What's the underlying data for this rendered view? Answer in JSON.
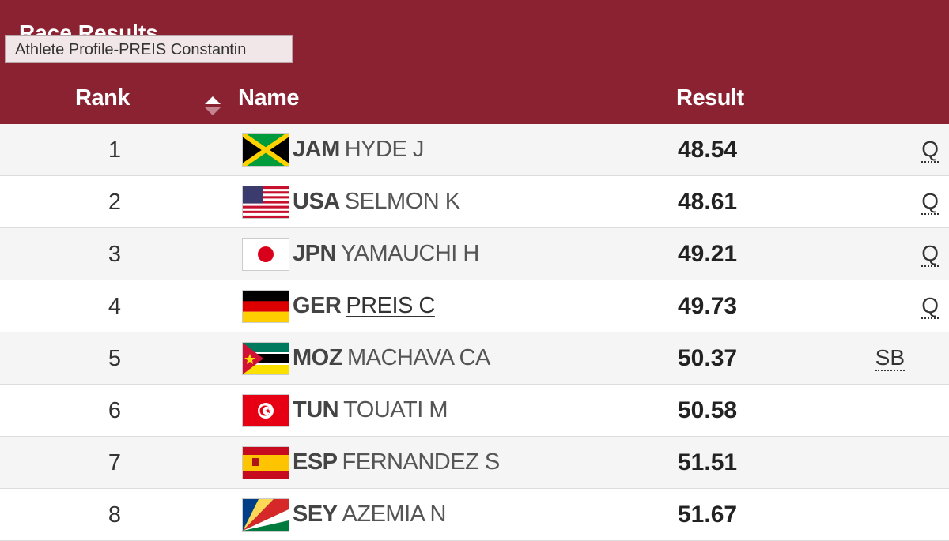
{
  "header": {
    "title": "Race Results",
    "tooltip": "Athlete Profile-PREIS Constantin",
    "columns": {
      "rank": "Rank",
      "name": "Name",
      "result": "Result"
    }
  },
  "table": {
    "rows": [
      {
        "rank": "1",
        "country": "JAM",
        "name": "HYDE J",
        "result": "48.54",
        "note": "Q"
      },
      {
        "rank": "2",
        "country": "USA",
        "name": "SELMON K",
        "result": "48.61",
        "note": "Q"
      },
      {
        "rank": "3",
        "country": "JPN",
        "name": "YAMAUCHI H",
        "result": "49.21",
        "note": "Q"
      },
      {
        "rank": "4",
        "country": "GER",
        "name": "PREIS C",
        "result": "49.73",
        "note": "Q"
      },
      {
        "rank": "5",
        "country": "MOZ",
        "name": "MACHAVA CA",
        "result": "50.37",
        "note": "SB"
      },
      {
        "rank": "6",
        "country": "TUN",
        "name": "TOUATI M",
        "result": "50.58"
      },
      {
        "rank": "7",
        "country": "ESP",
        "name": "FERNANDEZ S",
        "result": "51.51"
      },
      {
        "rank": "8",
        "country": "SEY",
        "name": "AZEMIA N",
        "result": "51.67"
      }
    ]
  }
}
